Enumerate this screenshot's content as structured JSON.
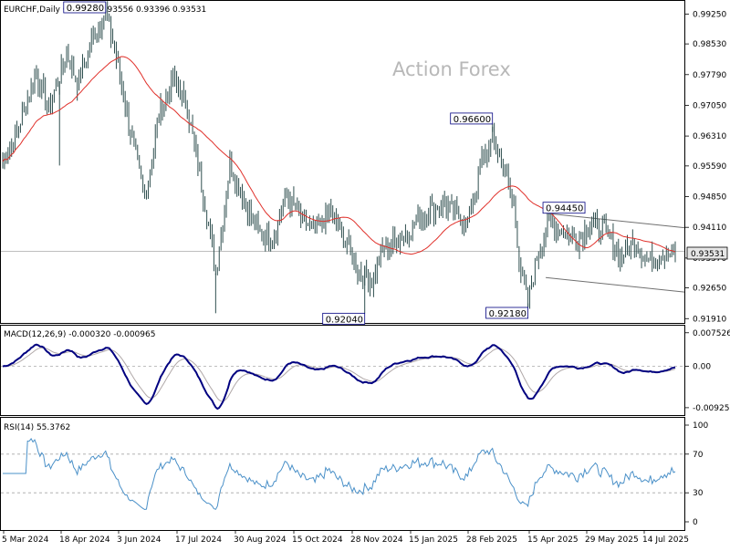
{
  "watermark": "Action Forex",
  "main_header": "EURCHF,Daily  0.93432 0.93556 0.93396 0.93531",
  "macd_header": "MACD(12,26,9) -0.000320 -0.000965",
  "rsi_header": "RSI(14) 55.3762",
  "price_tag": "0.93531",
  "colors": {
    "candles": "#2f4f4f",
    "ma": "#e0302a",
    "macd": "#000080",
    "signal": "#b0a8a8",
    "rsi": "#4a90c8",
    "channel": "#707070",
    "grid": "#a8a8a8",
    "price_tag_bg": "#e6e6e6"
  },
  "chart_data": [
    {
      "type": "candlestick",
      "title": "EURCHF,Daily",
      "ohlc_last": {
        "open": 0.93432,
        "high": 0.93556,
        "low": 0.93396,
        "close": 0.93531
      },
      "ylim": [
        0.9185,
        0.995
      ],
      "y_ticks": [
        "0.99250",
        "0.98530",
        "0.97790",
        "0.97050",
        "0.96310",
        "0.95590",
        "0.94850",
        "0.94110",
        "0.93370",
        "0.92650",
        "0.91910"
      ],
      "x_labels": [
        "5 Mar 2024",
        "18 Apr 2024",
        "3 Jun 2024",
        "17 Jul 2024",
        "30 Aug 2024",
        "15 Oct 2024",
        "28 Nov 2024",
        "15 Jan 2025",
        "28 Feb 2025",
        "15 Apr 2025",
        "29 May 2025",
        "14 Jul 2025"
      ],
      "series_close_approx": [
        [
          "5 Mar 2024",
          0.96
        ],
        [
          "18 Apr 2024",
          0.984
        ],
        [
          "3 Jun 2024",
          0.969
        ],
        [
          "17 Jul 2024",
          0.938
        ],
        [
          "30 Aug 2024",
          0.944
        ],
        [
          "15 Oct 2024",
          0.936
        ],
        [
          "28 Nov 2024",
          0.93
        ],
        [
          "15 Jan 2025",
          0.944
        ],
        [
          "28 Feb 2025",
          0.958
        ],
        [
          "15 Apr 2025",
          0.933
        ],
        [
          "29 May 2025",
          0.938
        ],
        [
          "14 Jul 2025",
          0.9353
        ]
      ],
      "annotations": [
        {
          "label": "0.99280",
          "value": 0.9928
        },
        {
          "label": "0.92040",
          "value": 0.9204
        },
        {
          "label": "0.96600",
          "value": 0.966
        },
        {
          "label": "0.94450",
          "value": 0.9445
        },
        {
          "label": "0.92180",
          "value": 0.9218
        }
      ],
      "current_price": 0.93531
    },
    {
      "type": "line",
      "title": "MACD(12,26,9)",
      "values_last": {
        "macd": -0.00032,
        "signal": -0.000965
      },
      "y_ticks": [
        "0.007526",
        "0.00",
        "-0.009252"
      ],
      "ylim": [
        -0.0105,
        0.0085
      ]
    },
    {
      "type": "line",
      "title": "RSI(14)",
      "value_last": 55.3762,
      "y_ticks": [
        "100",
        "70",
        "30",
        "0"
      ],
      "ylim": [
        0,
        100
      ],
      "levels": [
        30,
        70
      ]
    }
  ]
}
